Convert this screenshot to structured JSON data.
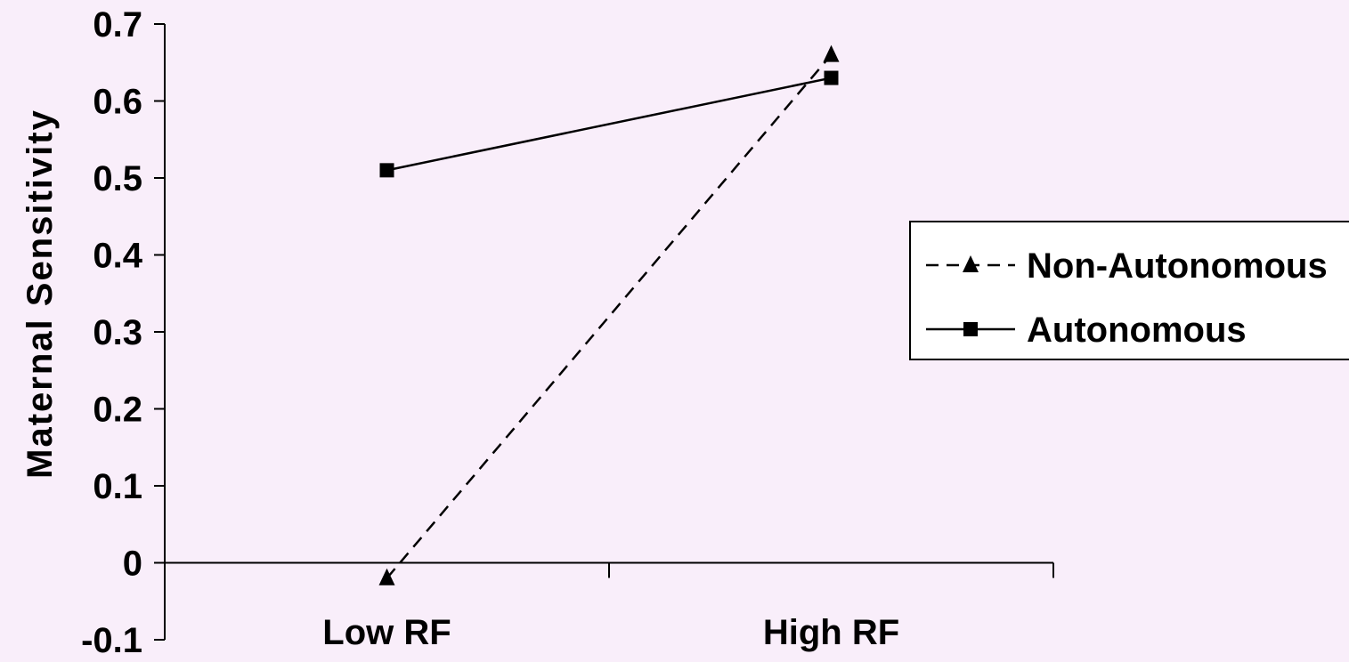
{
  "chart_data": {
    "type": "line",
    "title": "",
    "xlabel": "",
    "ylabel": "Maternal Sensitivity",
    "categories": [
      "Low RF",
      "High RF"
    ],
    "ylim": [
      -0.1,
      0.7
    ],
    "yticks": [
      "0.7",
      "0.6",
      "0.5",
      "0.4",
      "0.3",
      "0.2",
      "0.1",
      "0",
      "-0.1"
    ],
    "grid": false,
    "legend": "right",
    "series": [
      {
        "name": "Non-Autonomous",
        "values": [
          -0.02,
          0.66
        ],
        "line_style": "dashed",
        "marker": "triangle",
        "color": "#000000"
      },
      {
        "name": "Autonomous",
        "values": [
          0.51,
          0.63
        ],
        "line_style": "solid",
        "marker": "square",
        "color": "#000000"
      }
    ]
  }
}
